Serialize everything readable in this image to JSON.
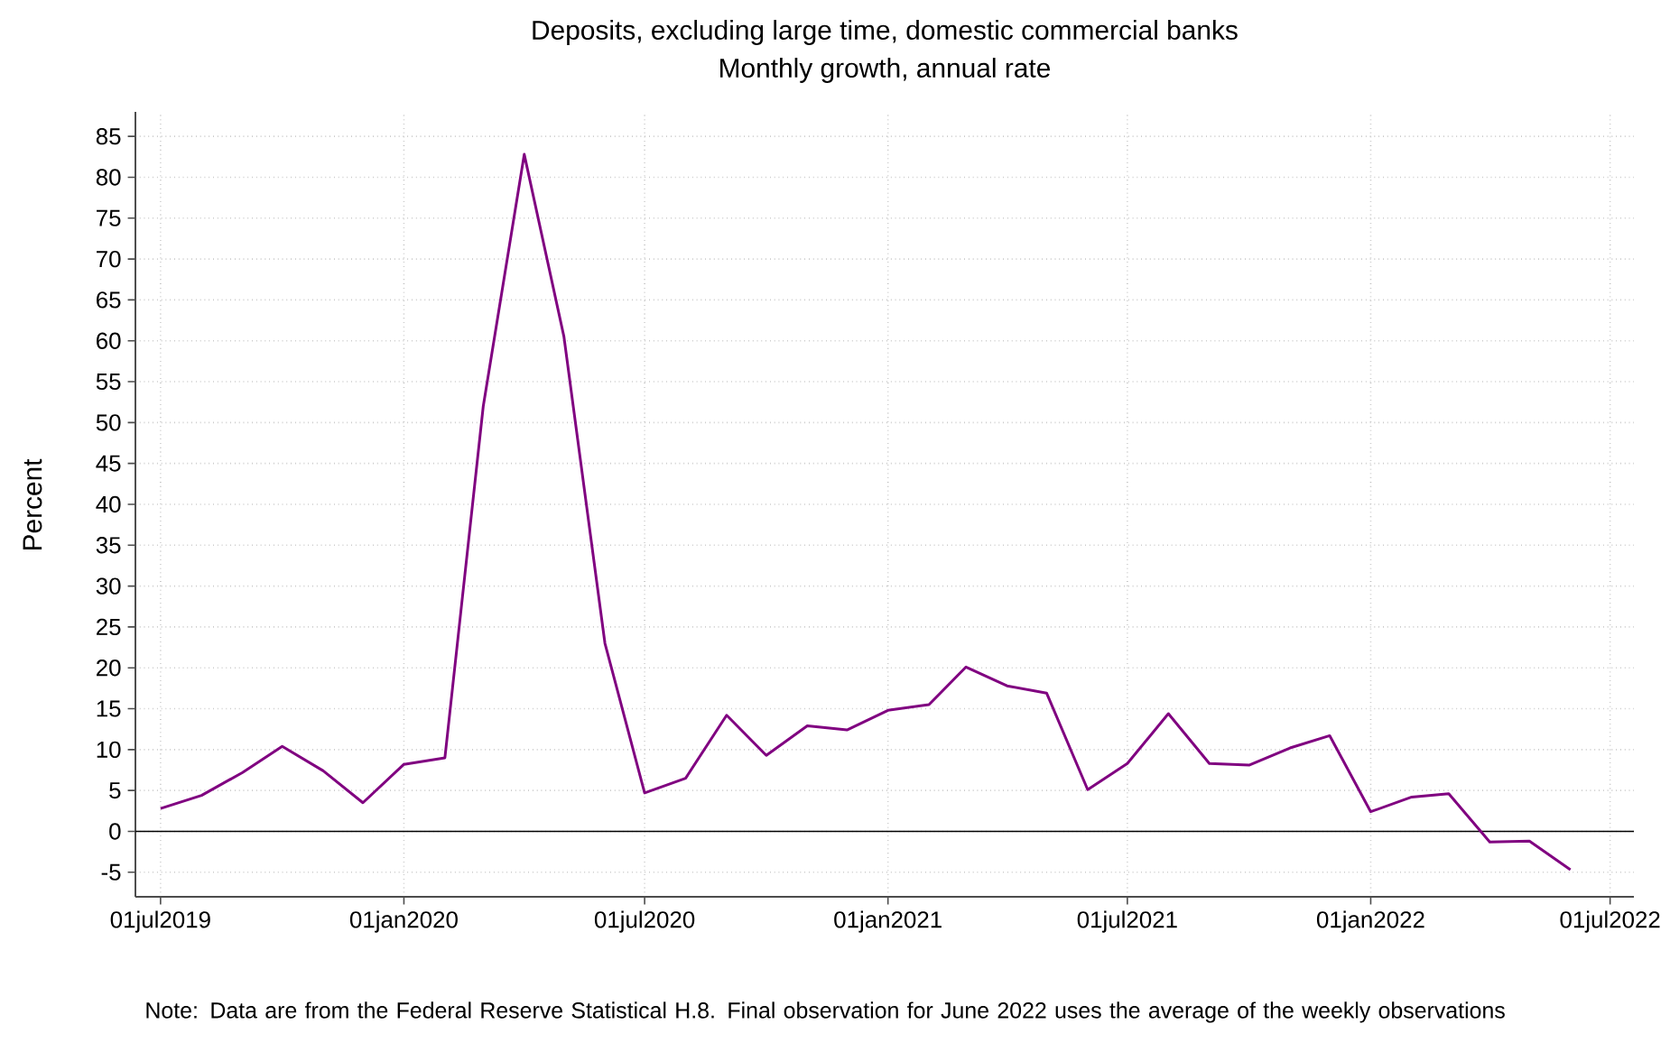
{
  "chart_data": {
    "type": "line",
    "title": "Deposits, excluding large time, domestic commercial banks",
    "subtitle": "Monthly growth, annual rate",
    "ylabel": "Percent",
    "annotations": [
      "Note:  Data are from the Federal Reserve Statistical H.8. Final observation for June 2022 uses the average of the weekly observations"
    ],
    "x": [
      "2019-07",
      "2019-08",
      "2019-09",
      "2019-10",
      "2019-11",
      "2019-12",
      "2020-01",
      "2020-02",
      "2020-03",
      "2020-04",
      "2020-05",
      "2020-06",
      "2020-07",
      "2020-08",
      "2020-09",
      "2020-10",
      "2020-11",
      "2020-12",
      "2021-01",
      "2021-02",
      "2021-03",
      "2021-04",
      "2021-05",
      "2021-06",
      "2021-07",
      "2021-08",
      "2021-09",
      "2021-10",
      "2021-11",
      "2021-12",
      "2022-01",
      "2022-02",
      "2022-03",
      "2022-04",
      "2022-05",
      "2022-06"
    ],
    "series": [
      {
        "color": "#800080",
        "values": [
          2.8,
          4.4,
          7.2,
          10.4,
          7.4,
          3.5,
          8.2,
          9.0,
          52,
          82.8,
          60.5,
          23,
          4.7,
          6.5,
          14.2,
          9.3,
          12.9,
          12.4,
          14.8,
          15.5,
          20.1,
          17.8,
          16.9,
          5.1,
          8.3,
          14.4,
          8.3,
          8.1,
          10.2,
          11.7,
          2.4,
          4.2,
          4.6,
          -1.3,
          -1.2,
          -4.7
        ]
      }
    ],
    "xlim": [
      "2019-06-12",
      "2022-07-19"
    ],
    "xticks": [
      {
        "value": "2019-07-01",
        "label": "01jul2019"
      },
      {
        "value": "2020-01-01",
        "label": "01jan2020"
      },
      {
        "value": "2020-07-01",
        "label": "01jul2020"
      },
      {
        "value": "2021-01-01",
        "label": "01jan2021"
      },
      {
        "value": "2021-07-01",
        "label": "01jul2021"
      },
      {
        "value": "2022-01-01",
        "label": "01jan2022"
      },
      {
        "value": "2022-07-01",
        "label": "01jul2022"
      }
    ],
    "ylim": [
      -8,
      88
    ],
    "yticks": [
      -5,
      0,
      5,
      10,
      15,
      20,
      25,
      30,
      35,
      40,
      45,
      50,
      55,
      60,
      65,
      70,
      75,
      80,
      85
    ],
    "ref_lines": [
      {
        "axis": "y",
        "value": 0,
        "color": "#000000"
      }
    ],
    "grid": true,
    "marker": "none",
    "line_style": "solid"
  }
}
